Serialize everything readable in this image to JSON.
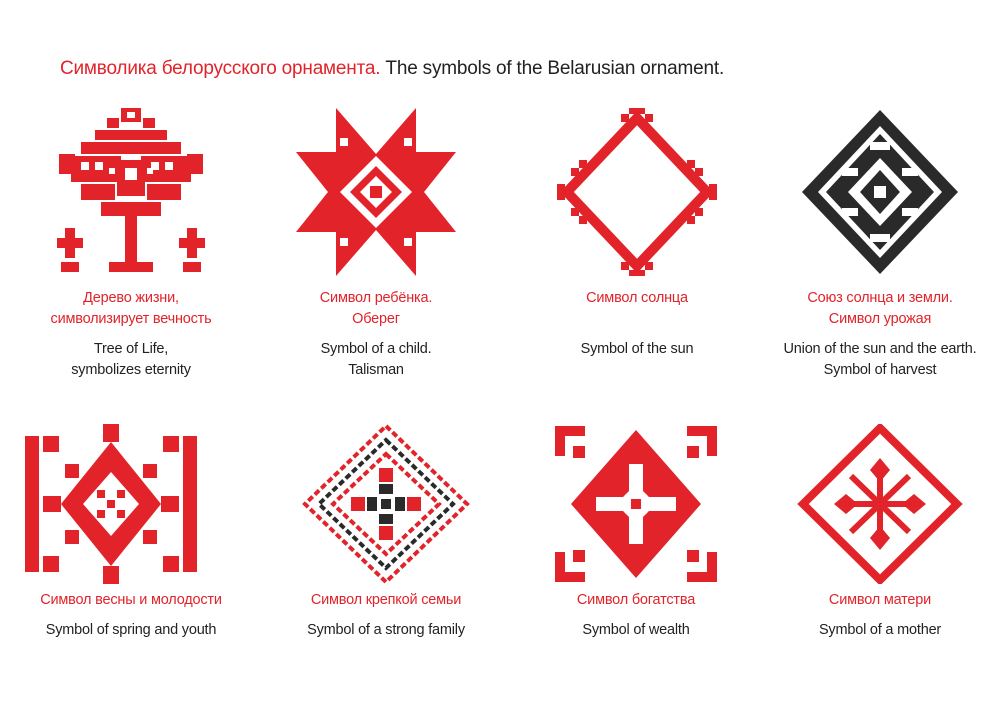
{
  "header": {
    "title_ru": "Символика белорусского орнамента.",
    "title_en": "The symbols of the Belarusian ornament."
  },
  "colors": {
    "red": "#e2232a",
    "dark": "#2b2a2a",
    "text": "#222222"
  },
  "symbols": [
    {
      "icon": "tree-of-life-ornament-icon",
      "ru": [
        "Дерево жизни,",
        "символизирует вечность"
      ],
      "en": [
        "Tree of Life,",
        "symbolizes eternity"
      ]
    },
    {
      "icon": "child-star-ornament-icon",
      "ru": [
        "Символ ребёнка.",
        "Оберег"
      ],
      "en": [
        "Symbol of a child.",
        "Talisman"
      ]
    },
    {
      "icon": "sun-ornament-icon",
      "ru": [
        "Символ солнца"
      ],
      "en": [
        "Symbol of  the  sun"
      ]
    },
    {
      "icon": "sun-earth-union-ornament-icon",
      "ru": [
        "Союз солнца и земли.",
        "Символ урожая"
      ],
      "en": [
        "Union of the sun and the earth.",
        "Symbol of harvest"
      ]
    },
    {
      "icon": "spring-youth-ornament-icon",
      "ru": [
        "Символ весны и молодости"
      ],
      "en": [
        "Symbol of spring and youth"
      ]
    },
    {
      "icon": "strong-family-ornament-icon",
      "ru": [
        "Символ крепкой семьи"
      ],
      "en": [
        "Symbol of a strong family"
      ]
    },
    {
      "icon": "wealth-ornament-icon",
      "ru": [
        "Символ богатства"
      ],
      "en": [
        "Symbol of wealth"
      ]
    },
    {
      "icon": "mother-ornament-icon",
      "ru": [
        "Символ матери"
      ],
      "en": [
        "Symbol of a mother"
      ]
    }
  ]
}
